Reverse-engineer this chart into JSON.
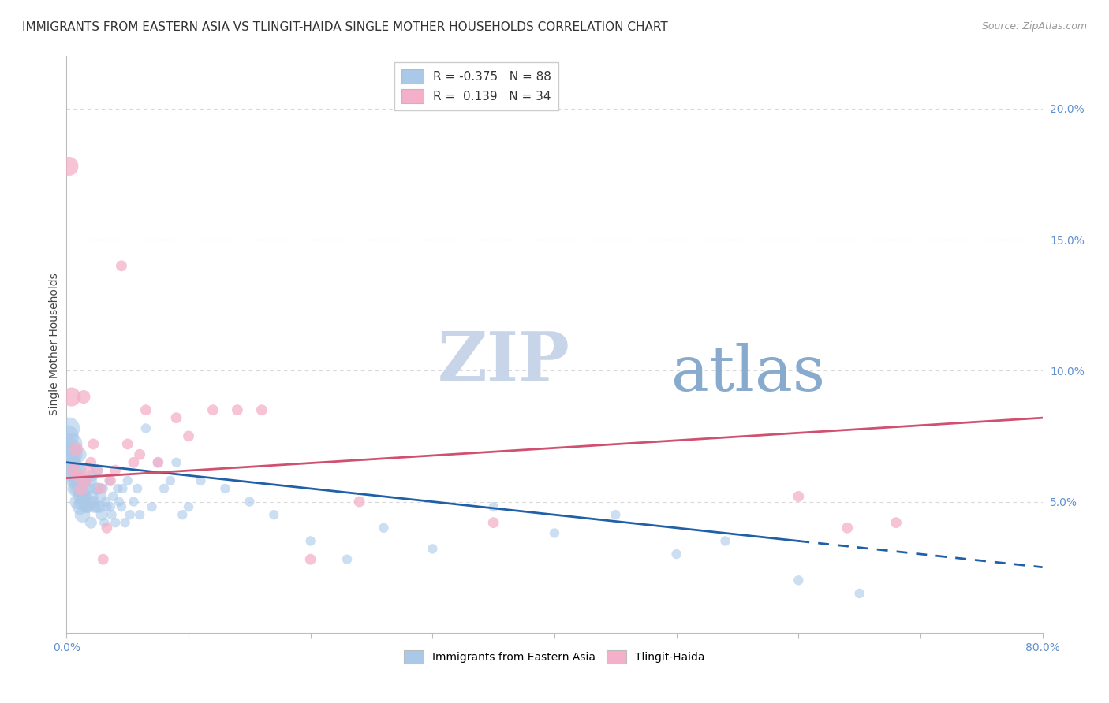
{
  "title": "IMMIGRANTS FROM EASTERN ASIA VS TLINGIT-HAIDA SINGLE MOTHER HOUSEHOLDS CORRELATION CHART",
  "source": "Source: ZipAtlas.com",
  "ylabel": "Single Mother Households",
  "watermark_zip": "ZIP",
  "watermark_atlas": "atlas",
  "legend1_r": "R = ",
  "legend1_rv": "-0.375",
  "legend1_n": "  N = ",
  "legend1_nv": "88",
  "legend2_r": "R =  ",
  "legend2_rv": "0.139",
  "legend2_n": "  N = ",
  "legend2_nv": "34",
  "blue_color": "#aac8e8",
  "pink_color": "#f4b0c8",
  "blue_line_color": "#2060a8",
  "pink_line_color": "#d05070",
  "blue_r_color": "#2060a8",
  "pink_r_color": "#d05070",
  "grid_color": "#d8d8d8",
  "tick_color": "#6090d0",
  "background_color": "#ffffff",
  "watermark_zip_color": "#c8d4e8",
  "watermark_atlas_color": "#88aacc",
  "blue_line_solid_x1": 0.6,
  "blue_line_x": [
    0.0,
    0.8
  ],
  "blue_line_y": [
    0.065,
    0.025
  ],
  "pink_line_x": [
    0.0,
    0.8
  ],
  "pink_line_y": [
    0.059,
    0.082
  ],
  "xlim": [
    0.0,
    0.8
  ],
  "ylim": [
    0.0,
    0.22
  ],
  "blue_scatter_x": [
    0.001,
    0.002,
    0.003,
    0.003,
    0.004,
    0.004,
    0.005,
    0.005,
    0.006,
    0.006,
    0.007,
    0.007,
    0.008,
    0.008,
    0.009,
    0.009,
    0.01,
    0.01,
    0.011,
    0.011,
    0.012,
    0.012,
    0.013,
    0.013,
    0.014,
    0.015,
    0.015,
    0.016,
    0.016,
    0.017,
    0.018,
    0.018,
    0.019,
    0.02,
    0.02,
    0.021,
    0.021,
    0.022,
    0.023,
    0.024,
    0.025,
    0.025,
    0.026,
    0.027,
    0.028,
    0.029,
    0.03,
    0.031,
    0.032,
    0.033,
    0.035,
    0.036,
    0.037,
    0.038,
    0.04,
    0.042,
    0.043,
    0.045,
    0.046,
    0.048,
    0.05,
    0.052,
    0.055,
    0.058,
    0.06,
    0.065,
    0.07,
    0.075,
    0.08,
    0.085,
    0.09,
    0.095,
    0.1,
    0.11,
    0.13,
    0.15,
    0.17,
    0.2,
    0.23,
    0.26,
    0.3,
    0.35,
    0.4,
    0.45,
    0.5,
    0.54,
    0.6,
    0.65
  ],
  "blue_scatter_y": [
    0.075,
    0.078,
    0.07,
    0.065,
    0.068,
    0.072,
    0.065,
    0.06,
    0.062,
    0.058,
    0.06,
    0.055,
    0.063,
    0.058,
    0.055,
    0.05,
    0.068,
    0.062,
    0.055,
    0.048,
    0.058,
    0.052,
    0.05,
    0.045,
    0.052,
    0.055,
    0.048,
    0.058,
    0.052,
    0.048,
    0.055,
    0.048,
    0.05,
    0.058,
    0.042,
    0.06,
    0.052,
    0.05,
    0.048,
    0.055,
    0.062,
    0.048,
    0.055,
    0.048,
    0.052,
    0.045,
    0.055,
    0.042,
    0.05,
    0.048,
    0.058,
    0.048,
    0.045,
    0.052,
    0.042,
    0.055,
    0.05,
    0.048,
    0.055,
    0.042,
    0.058,
    0.045,
    0.05,
    0.055,
    0.045,
    0.078,
    0.048,
    0.065,
    0.055,
    0.058,
    0.065,
    0.045,
    0.048,
    0.058,
    0.055,
    0.05,
    0.045,
    0.035,
    0.028,
    0.04,
    0.032,
    0.048,
    0.038,
    0.045,
    0.03,
    0.035,
    0.02,
    0.015
  ],
  "pink_scatter_x": [
    0.002,
    0.004,
    0.006,
    0.008,
    0.01,
    0.012,
    0.014,
    0.016,
    0.018,
    0.02,
    0.022,
    0.025,
    0.028,
    0.03,
    0.033,
    0.036,
    0.04,
    0.045,
    0.05,
    0.055,
    0.06,
    0.065,
    0.075,
    0.09,
    0.1,
    0.12,
    0.14,
    0.16,
    0.2,
    0.24,
    0.35,
    0.6,
    0.64,
    0.68
  ],
  "pink_scatter_y": [
    0.178,
    0.09,
    0.062,
    0.07,
    0.06,
    0.055,
    0.09,
    0.058,
    0.062,
    0.065,
    0.072,
    0.062,
    0.055,
    0.028,
    0.04,
    0.058,
    0.062,
    0.14,
    0.072,
    0.065,
    0.068,
    0.085,
    0.065,
    0.082,
    0.075,
    0.085,
    0.085,
    0.085,
    0.028,
    0.05,
    0.042,
    0.052,
    0.04,
    0.042
  ],
  "title_fontsize": 11,
  "source_fontsize": 9
}
